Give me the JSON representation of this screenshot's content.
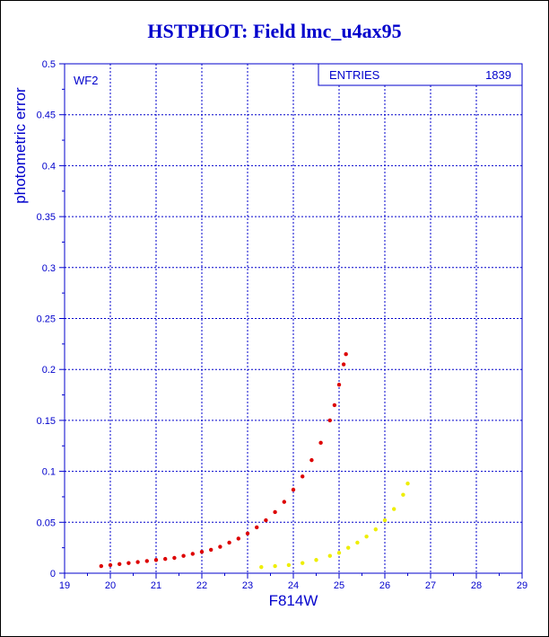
{
  "title": "HSTPHOT: Field lmc_u4ax95",
  "colors": {
    "axis": "#0000cc",
    "grid": "#0000cc",
    "series_red": "#dd0000",
    "series_yellow": "#eeee00"
  },
  "stats": {
    "label": "ENTRIES",
    "value": "1839"
  },
  "chart_data": {
    "type": "scatter",
    "title": "HSTPHOT: Field lmc_u4ax95",
    "panel_label": "WF2",
    "xlabel": "F814W",
    "ylabel": "photometric error",
    "xlim": [
      19,
      29
    ],
    "ylim": [
      0,
      0.5
    ],
    "x_ticks": [
      "19",
      "20",
      "21",
      "22",
      "23",
      "24",
      "25",
      "26",
      "27",
      "28",
      "29"
    ],
    "y_ticks": [
      "0",
      "0.05",
      "0.1",
      "0.15",
      "0.2",
      "0.25",
      "0.3",
      "0.35",
      "0.4",
      "0.45",
      "0.5"
    ],
    "grid": true,
    "series": [
      {
        "color": "#dd0000",
        "points": [
          [
            19.8,
            0.007
          ],
          [
            20.0,
            0.008
          ],
          [
            20.2,
            0.009
          ],
          [
            20.4,
            0.01
          ],
          [
            20.6,
            0.011
          ],
          [
            20.8,
            0.012
          ],
          [
            21.0,
            0.013
          ],
          [
            21.2,
            0.014
          ],
          [
            21.4,
            0.015
          ],
          [
            21.6,
            0.017
          ],
          [
            21.8,
            0.019
          ],
          [
            22.0,
            0.021
          ],
          [
            22.2,
            0.023
          ],
          [
            22.4,
            0.026
          ],
          [
            22.6,
            0.03
          ],
          [
            22.8,
            0.034
          ],
          [
            23.0,
            0.039
          ],
          [
            23.2,
            0.045
          ],
          [
            23.4,
            0.052
          ],
          [
            23.6,
            0.06
          ],
          [
            23.8,
            0.07
          ],
          [
            24.0,
            0.082
          ],
          [
            24.2,
            0.095
          ],
          [
            24.4,
            0.111
          ],
          [
            24.6,
            0.128
          ],
          [
            24.8,
            0.15
          ],
          [
            24.9,
            0.165
          ],
          [
            25.0,
            0.185
          ],
          [
            25.1,
            0.205
          ],
          [
            25.15,
            0.215
          ]
        ]
      },
      {
        "color": "#eeee00",
        "points": [
          [
            23.3,
            0.006
          ],
          [
            23.6,
            0.007
          ],
          [
            23.9,
            0.008
          ],
          [
            24.2,
            0.01
          ],
          [
            24.5,
            0.013
          ],
          [
            24.8,
            0.017
          ],
          [
            25.0,
            0.02
          ],
          [
            25.2,
            0.025
          ],
          [
            25.4,
            0.03
          ],
          [
            25.6,
            0.036
          ],
          [
            25.8,
            0.043
          ],
          [
            26.0,
            0.052
          ],
          [
            26.2,
            0.063
          ],
          [
            26.4,
            0.077
          ],
          [
            26.5,
            0.088
          ]
        ]
      }
    ]
  }
}
